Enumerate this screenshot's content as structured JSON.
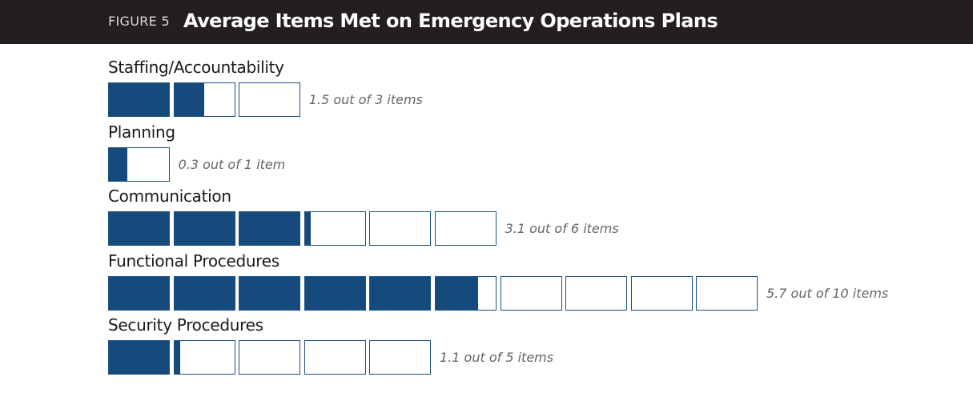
{
  "header": {
    "figure_label": "FIGURE 5",
    "title": "Average Items Met on Emergency Operations Plans"
  },
  "colors": {
    "fill": "#164a7d",
    "border": "#1d4f80",
    "header_bg": "#231f20"
  },
  "chart_data": {
    "type": "bar",
    "title": "Average Items Met on Emergency Operations Plans",
    "categories": [
      "Staffing/Accountability",
      "Planning",
      "Communication",
      "Functional Procedures",
      "Security Procedures"
    ],
    "series": [
      {
        "name": "Average items met",
        "values": [
          1.5,
          0.3,
          3.1,
          5.7,
          1.1
        ]
      },
      {
        "name": "Total items",
        "values": [
          3,
          1,
          6,
          10,
          5
        ]
      }
    ],
    "value_labels": [
      "1.5 out of 3 items",
      "0.3 out of 1 item",
      "3.1 out of 6 items",
      "5.7 out of 10 items",
      "1.1 out of 5 items"
    ]
  }
}
